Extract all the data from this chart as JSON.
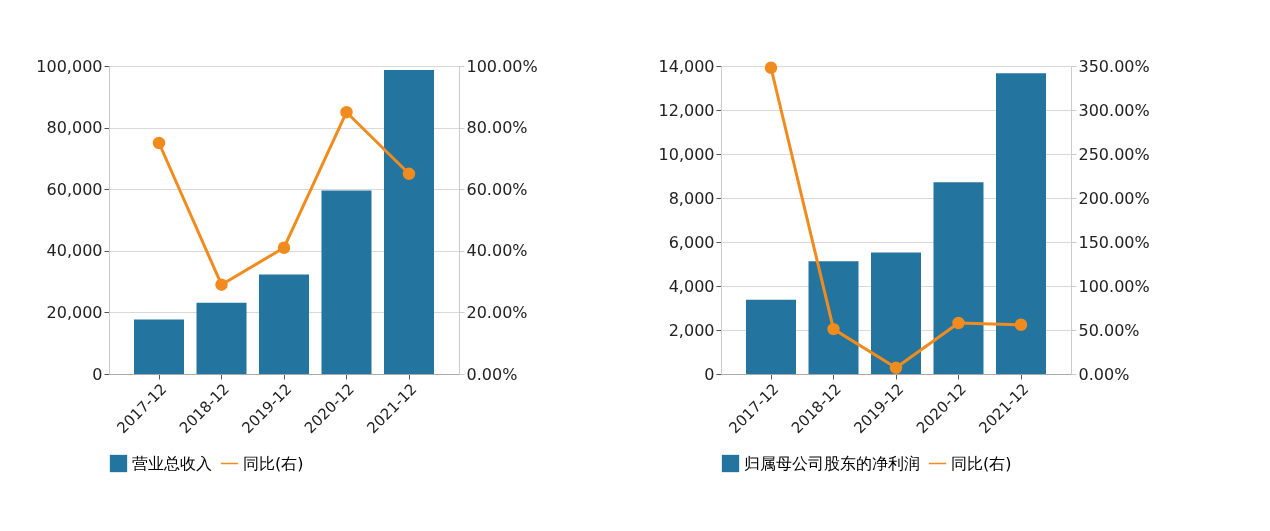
{
  "chart_data": [
    {
      "type": "bar",
      "categories": [
        "2017-12",
        "2018-12",
        "2019-12",
        "2020-12",
        "2021-12"
      ],
      "series": [
        {
          "name": "营业总收入",
          "color": "#2474a0",
          "values": [
            17700,
            23100,
            32300,
            59600,
            98700
          ]
        },
        {
          "name": "同比(右)",
          "type": "line",
          "axis": "y2",
          "color": "#f28b1e",
          "values": [
            75,
            29,
            41,
            85,
            65
          ]
        }
      ],
      "ylim": [
        0,
        100000
      ],
      "yticks": [
        {
          "value": 0,
          "label": "0"
        },
        {
          "value": 20000,
          "label": "20,000"
        },
        {
          "value": 40000,
          "label": "40,000"
        },
        {
          "value": 60000,
          "label": "60,000"
        },
        {
          "value": 80000,
          "label": "80,000"
        },
        {
          "value": 100000,
          "label": "100,000"
        }
      ],
      "y2lim": [
        0,
        100
      ],
      "y2ticks": [
        {
          "value": 0,
          "label": "0.00%"
        },
        {
          "value": 20,
          "label": "20.00%"
        },
        {
          "value": 40,
          "label": "40.00%"
        },
        {
          "value": 60,
          "label": "60.00%"
        },
        {
          "value": 80,
          "label": "80.00%"
        },
        {
          "value": 100,
          "label": "100.00%"
        }
      ],
      "grid": "y",
      "legend": "bottom",
      "marker": "circle",
      "line_style": "solid"
    },
    {
      "type": "bar",
      "categories": [
        "2017-12",
        "2018-12",
        "2019-12",
        "2020-12",
        "2021-12"
      ],
      "series": [
        {
          "name": "归属母公司股东的净利润",
          "color": "#2474a0",
          "values": [
            3380,
            5130,
            5520,
            8720,
            13670
          ]
        },
        {
          "name": "同比(右)",
          "type": "line",
          "axis": "y2",
          "color": "#f28b1e",
          "values": [
            348,
            51,
            7,
            58,
            56
          ]
        }
      ],
      "ylim": [
        0,
        14000
      ],
      "yticks": [
        {
          "value": 0,
          "label": "0"
        },
        {
          "value": 2000,
          "label": "2,000"
        },
        {
          "value": 4000,
          "label": "4,000"
        },
        {
          "value": 6000,
          "label": "6,000"
        },
        {
          "value": 8000,
          "label": "8,000"
        },
        {
          "value": 10000,
          "label": "10,000"
        },
        {
          "value": 12000,
          "label": "12,000"
        },
        {
          "value": 14000,
          "label": "14,000"
        }
      ],
      "y2lim": [
        0,
        350
      ],
      "y2ticks": [
        {
          "value": 0,
          "label": "0.00%"
        },
        {
          "value": 50,
          "label": "50.00%"
        },
        {
          "value": 100,
          "label": "100.00%"
        },
        {
          "value": 150,
          "label": "150.00%"
        },
        {
          "value": 200,
          "label": "200.00%"
        },
        {
          "value": 250,
          "label": "250.00%"
        },
        {
          "value": 300,
          "label": "300.00%"
        },
        {
          "value": 350,
          "label": "350.00%"
        }
      ],
      "grid": "y",
      "legend": "bottom",
      "marker": "circle",
      "line_style": "solid"
    }
  ]
}
